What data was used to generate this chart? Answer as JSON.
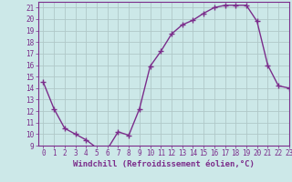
{
  "x": [
    0,
    1,
    2,
    3,
    4,
    5,
    6,
    7,
    8,
    9,
    10,
    11,
    12,
    13,
    14,
    15,
    16,
    17,
    18,
    19,
    20,
    21,
    22,
    23
  ],
  "y": [
    14.5,
    12.2,
    10.5,
    10.0,
    9.5,
    8.8,
    8.7,
    10.2,
    9.9,
    12.2,
    15.9,
    17.2,
    18.7,
    19.5,
    19.9,
    20.5,
    21.0,
    21.2,
    21.2,
    21.2,
    19.8,
    16.0,
    14.2,
    14.0
  ],
  "line_color": "#7b2d8b",
  "marker": "+",
  "marker_size": 4,
  "bg_color": "#cce8e8",
  "grid_color": "#b0c8c8",
  "xlabel": "Windchill (Refroidissement éolien,°C)",
  "ylim": [
    9,
    21.5
  ],
  "xlim": [
    -0.5,
    23
  ],
  "yticks": [
    9,
    10,
    11,
    12,
    13,
    14,
    15,
    16,
    17,
    18,
    19,
    20,
    21
  ],
  "xticks": [
    0,
    1,
    2,
    3,
    4,
    5,
    6,
    7,
    8,
    9,
    10,
    11,
    12,
    13,
    14,
    15,
    16,
    17,
    18,
    19,
    20,
    21,
    22,
    23
  ],
  "tick_label_fontsize": 5.5,
  "xlabel_fontsize": 6.5,
  "line_width": 1.0,
  "axis_color": "#7b2d8b",
  "spine_color": "#7b2d8b"
}
